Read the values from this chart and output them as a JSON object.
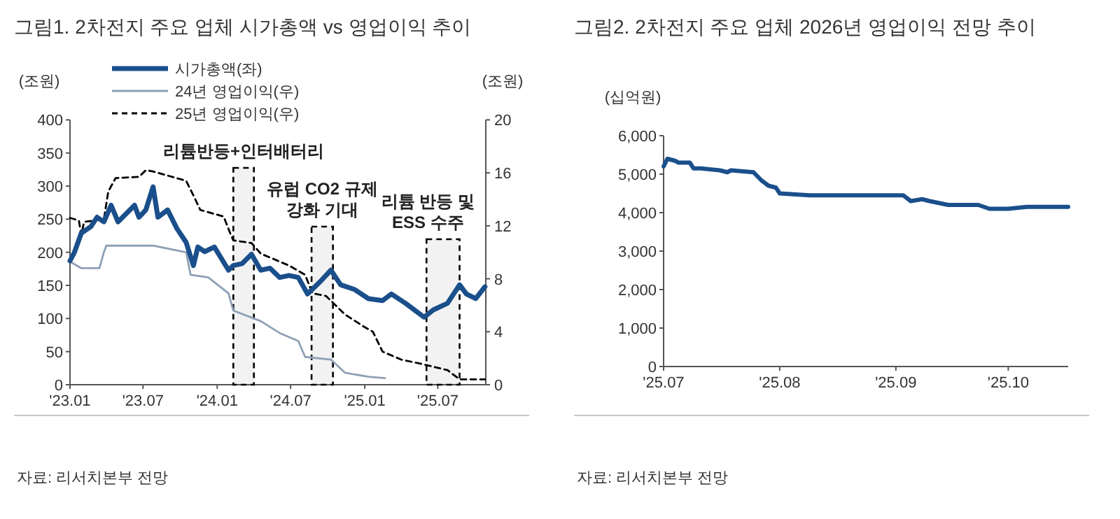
{
  "chart_data": [
    {
      "type": "line",
      "title": "그림1. 2차전지 주요 업체 시가총액 vs 영업이익 추이",
      "ylabel": "(조원)",
      "y2label": "(조원)",
      "xlim": [
        "2023-01-01",
        "2025-10-28"
      ],
      "ylim": [
        0,
        400
      ],
      "y2lim": [
        0,
        20
      ],
      "xticks": [
        {
          "value": "2023-01",
          "label": "'23.01"
        },
        {
          "value": "2023-07",
          "label": "'23.07"
        },
        {
          "value": "2024-01",
          "label": "'24.01"
        },
        {
          "value": "2024-07",
          "label": "'24.07"
        },
        {
          "value": "2025-01",
          "label": "'25.01"
        },
        {
          "value": "2025-07",
          "label": "'25.07"
        }
      ],
      "yticks": [
        0,
        50,
        100,
        150,
        200,
        250,
        300,
        350,
        400
      ],
      "y2ticks": [
        0,
        4,
        8,
        12,
        16,
        20
      ],
      "legend": "top left",
      "series": [
        {
          "name": "시가총액(좌)",
          "color": "#1a4f8b",
          "x": [
            "2023-01-01",
            "2023-01-12",
            "2023-01-29",
            "2023-02-22",
            "2023-03-09",
            "2023-03-26",
            "2023-04-13",
            "2023-04-30",
            "2023-06-10",
            "2023-06-21",
            "2023-07-08",
            "2023-07-26",
            "2023-08-07",
            "2023-08-31",
            "2023-09-23",
            "2023-10-16",
            "2023-11-03",
            "2023-11-14",
            "2023-12-01",
            "2023-12-25",
            "2024-01-29",
            "2024-02-10",
            "2024-03-03",
            "2024-03-26",
            "2024-04-18",
            "2024-05-11",
            "2024-06-04",
            "2024-06-27",
            "2024-07-20",
            "2024-08-12",
            "2024-09-16",
            "2024-10-09",
            "2024-11-02",
            "2024-12-06",
            "2025-01-10",
            "2025-02-14",
            "2025-03-08",
            "2025-04-12",
            "2025-05-28",
            "2025-06-20",
            "2025-07-25",
            "2025-08-24",
            "2025-09-10",
            "2025-10-03",
            "2025-10-26"
          ],
          "values": [
            187,
            200,
            229,
            239,
            253,
            246,
            271,
            246,
            271,
            253,
            264,
            299,
            253,
            264,
            236,
            215,
            180,
            208,
            201,
            208,
            173,
            180,
            183,
            197,
            173,
            176,
            162,
            165,
            162,
            137,
            158,
            173,
            151,
            144,
            130,
            127,
            137,
            123,
            102,
            113,
            123,
            151,
            137,
            130,
            148
          ]
        },
        {
          "name": "24년 영업이익(우)",
          "color": "#8fa0b5",
          "axis": "y2",
          "x": [
            "2023-01-01",
            "2023-01-29",
            "2023-03-15",
            "2023-03-26",
            "2023-04-01",
            "2023-07-26",
            "2023-10-16",
            "2023-10-27",
            "2023-12-10",
            "2024-01-29",
            "2024-02-10",
            "2024-04-18",
            "2024-06-04",
            "2024-07-20",
            "2024-08-06",
            "2024-10-09",
            "2024-11-13",
            "2025-01-10",
            "2025-02-20"
          ],
          "values": [
            9.3,
            8.8,
            8.8,
            10.0,
            10.5,
            10.5,
            10.0,
            8.3,
            8.1,
            6.9,
            5.6,
            4.8,
            3.9,
            3.3,
            2.1,
            1.9,
            0.9,
            0.6,
            0.5
          ]
        },
        {
          "name": "25년 영업이익(우)",
          "color": "#000000",
          "axis": "y2",
          "line_style": "dashed",
          "x": [
            "2023-01-01",
            "2023-01-23",
            "2023-01-29",
            "2023-02-05",
            "2023-03-26",
            "2023-04-06",
            "2023-04-24",
            "2023-06-21",
            "2023-07-08",
            "2023-07-26",
            "2023-10-16",
            "2023-11-03",
            "2023-11-20",
            "2024-01-17",
            "2024-02-04",
            "2024-02-10",
            "2024-03-26",
            "2024-04-18",
            "2024-06-27",
            "2024-08-06",
            "2024-08-24",
            "2024-09-27",
            "2024-11-13",
            "2024-12-29",
            "2025-01-21",
            "2025-02-14",
            "2025-04-01",
            "2025-05-17",
            "2025-07-25",
            "2025-08-24",
            "2025-10-26"
          ],
          "values": [
            12.6,
            12.4,
            11.3,
            12.3,
            12.5,
            14.6,
            15.6,
            15.7,
            16.2,
            16.1,
            15.4,
            14.3,
            13.2,
            12.7,
            11.3,
            10.9,
            10.7,
            9.9,
            9.0,
            8.3,
            6.9,
            6.7,
            5.3,
            4.4,
            4.0,
            2.5,
            1.9,
            1.6,
            1.1,
            0.4,
            0.4
          ]
        }
      ],
      "bands": [
        {
          "axis": "x",
          "from": "2024-02-10",
          "to": "2024-04-01",
          "label": "리튬반등+인터배터리",
          "color": "#000000"
        },
        {
          "axis": "x",
          "from": "2024-08-22",
          "to": "2024-10-14",
          "label": "유럽 CO2 규제 강화 기대",
          "color": "#000000"
        },
        {
          "axis": "x",
          "from": "2025-06-03",
          "to": "2025-08-24",
          "label": "리튬 반등 및 ESS 수주",
          "color": "#000000"
        }
      ],
      "annotations": [
        "자료: 리서치본부 전망"
      ]
    },
    {
      "type": "line",
      "title": "그림2. 2차전지 주요 업체 2026년 영업이익 전망 추이",
      "ylabel": "(십억원)",
      "xlim": [
        "2025-07-01",
        "2025-10-17"
      ],
      "ylim": [
        0,
        6000
      ],
      "xticks": [
        {
          "value": "2025-07-01",
          "label": "'25.07"
        },
        {
          "value": "2025-08-01",
          "label": "'25.08"
        },
        {
          "value": "2025-09-01",
          "label": "'25.09"
        },
        {
          "value": "2025-10-01",
          "label": "'25.10"
        }
      ],
      "yticks": [
        0,
        {
          "value": 1000,
          "label": "1,000"
        },
        {
          "value": 2000,
          "label": "2,000"
        },
        {
          "value": 3000,
          "label": "3,000"
        },
        {
          "value": 4000,
          "label": "4,000"
        },
        {
          "value": 5000,
          "label": "5,000"
        },
        {
          "value": 6000,
          "label": "6,000"
        }
      ],
      "color": "#1a4f8b",
      "x": [
        "2025-07-01",
        "2025-07-02",
        "2025-07-04",
        "2025-07-05",
        "2025-07-08",
        "2025-07-09",
        "2025-07-11",
        "2025-07-16",
        "2025-07-18",
        "2025-07-19",
        "2025-07-25",
        "2025-07-27",
        "2025-07-29",
        "2025-07-31",
        "2025-08-01",
        "2025-08-09",
        "2025-08-23",
        "2025-09-03",
        "2025-09-05",
        "2025-09-08",
        "2025-09-10",
        "2025-09-15",
        "2025-09-23",
        "2025-09-26",
        "2025-10-01",
        "2025-10-06",
        "2025-10-17"
      ],
      "values": [
        5200,
        5400,
        5350,
        5300,
        5300,
        5150,
        5150,
        5100,
        5050,
        5100,
        5050,
        4850,
        4700,
        4650,
        4500,
        4450,
        4450,
        4450,
        4300,
        4350,
        4300,
        4200,
        4200,
        4100,
        4100,
        4150,
        4150
      ],
      "annotations": [
        "자료: 리서치본부 전망"
      ]
    }
  ]
}
